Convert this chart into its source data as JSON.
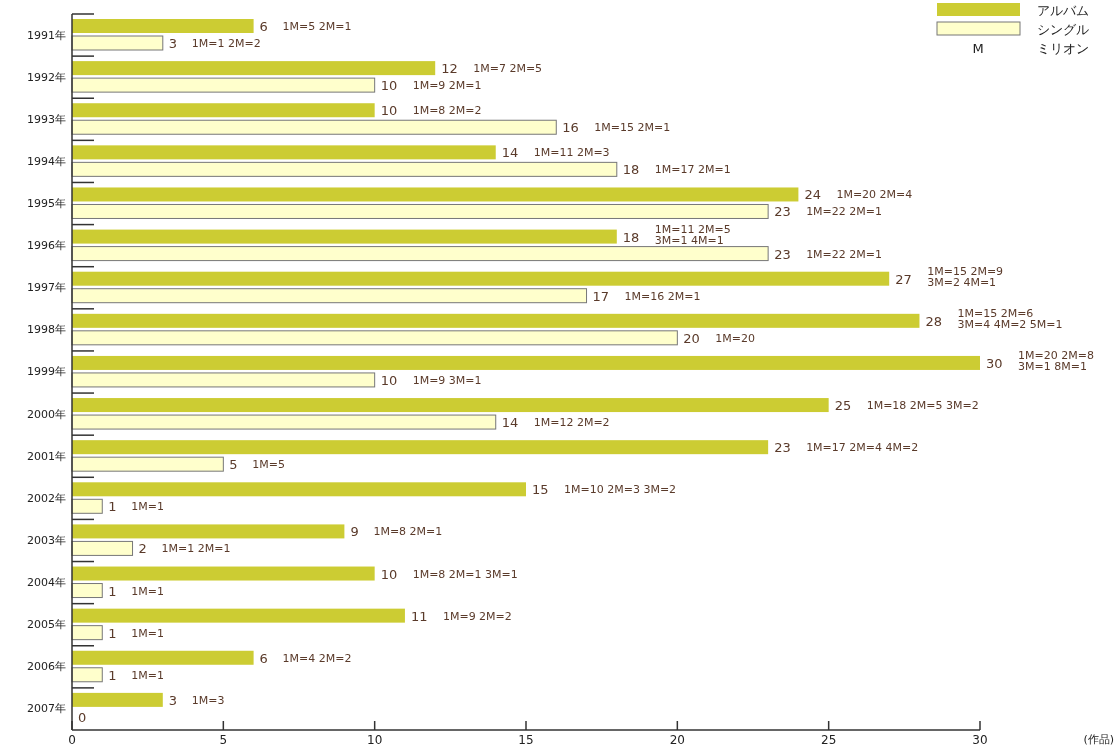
{
  "chart_data": {
    "type": "bar",
    "orientation": "horizontal",
    "categories": [
      "1991年",
      "1992年",
      "1993年",
      "1994年",
      "1995年",
      "1996年",
      "1997年",
      "1998年",
      "1999年",
      "2000年",
      "2001年",
      "2002年",
      "2003年",
      "2004年",
      "2005年",
      "2006年",
      "2007年"
    ],
    "series": [
      {
        "name": "アルバム",
        "color": "#cccc33",
        "values": [
          6,
          12,
          10,
          14,
          24,
          18,
          27,
          28,
          30,
          25,
          23,
          15,
          9,
          10,
          11,
          6,
          3
        ],
        "value_labels": [
          "6 1M=5 2M=1",
          "12 1M=7 2M=5",
          "10 1M=8 2M=2",
          "14 1M=11 2M=3",
          "24 1M=20 2M=4",
          "18 1M=11 2M=5\n3M=1 4M=1",
          "27 1M=15 2M=9\n3M=2 4M=1",
          "28 1M=15 2M=6\n3M=4 4M=2 5M=1",
          "30 1M=20 2M=8\n3M=1 8M=1",
          "25 1M=18 2M=5 3M=2",
          "23 1M=17 2M=4 4M=2",
          "15 1M=10 2M=3 3M=2",
          "9 1M=8 2M=1",
          "10 1M=8 2M=1 3M=1",
          "11 1M=9 2M=2",
          "6 1M=4 2M=2",
          "3 1M=3"
        ]
      },
      {
        "name": "シングル",
        "color": "#ffffcc",
        "values": [
          3,
          10,
          16,
          18,
          23,
          23,
          17,
          20,
          10,
          14,
          5,
          1,
          2,
          1,
          1,
          1,
          0
        ],
        "value_labels": [
          "3 1M=1 2M=2",
          "10 1M=9 2M=1",
          "16 1M=15 2M=1",
          "18 1M=17 2M=1",
          "23 1M=22 2M=1",
          "23 1M=22 2M=1",
          "17 1M=16 2M=1",
          "20 1M=20",
          "10 1M=9 3M=1",
          "14 1M=12 2M=2",
          "5 1M=5",
          "1 1M=1",
          "2 1M=1 2M=1",
          "1 1M=1",
          "1 1M=1",
          "1 1M=1",
          "0"
        ]
      }
    ],
    "xlim": [
      0,
      30
    ],
    "xticks": [
      0,
      5,
      10,
      15,
      20,
      25,
      30
    ],
    "legend": "top right",
    "grid": false,
    "annotations": [
      "M ミリオン",
      "(作品)"
    ]
  }
}
